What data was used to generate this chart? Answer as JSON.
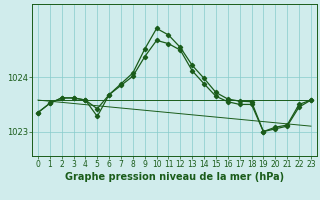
{
  "background_color": "#d0ecec",
  "grid_color": "#88cccc",
  "line_color": "#1a5c1a",
  "title": "Graphe pression niveau de la mer (hPa)",
  "xlim": [
    -0.5,
    23.5
  ],
  "ylim": [
    1022.55,
    1025.35
  ],
  "yticks": [
    1023,
    1024
  ],
  "xticks": [
    0,
    1,
    2,
    3,
    4,
    5,
    6,
    7,
    8,
    9,
    10,
    11,
    12,
    13,
    14,
    15,
    16,
    17,
    18,
    19,
    20,
    21,
    22,
    23
  ],
  "series1_x": [
    0,
    1,
    2,
    3,
    4,
    5,
    6,
    7,
    8,
    9,
    10,
    11,
    12,
    13,
    14,
    15,
    16,
    17,
    18,
    19,
    20,
    21,
    22,
    23
  ],
  "series1_y": [
    1023.35,
    1023.52,
    1023.62,
    1023.62,
    1023.58,
    1023.28,
    1023.68,
    1023.88,
    1024.08,
    1024.52,
    1024.9,
    1024.78,
    1024.55,
    1024.22,
    1023.98,
    1023.72,
    1023.6,
    1023.56,
    1023.55,
    1023.0,
    1023.08,
    1023.12,
    1023.5,
    1023.58
  ],
  "series2_x": [
    0,
    1,
    2,
    3,
    4,
    5,
    6,
    7,
    8,
    9,
    10,
    11,
    12,
    13,
    14,
    15,
    16,
    17,
    18,
    19,
    20,
    21,
    22,
    23
  ],
  "series2_y": [
    1023.35,
    1023.52,
    1023.62,
    1023.62,
    1023.58,
    1023.42,
    1023.68,
    1023.85,
    1024.02,
    1024.38,
    1024.68,
    1024.62,
    1024.5,
    1024.12,
    1023.88,
    1023.65,
    1023.55,
    1023.5,
    1023.5,
    1023.0,
    1023.05,
    1023.1,
    1023.45,
    1023.58
  ],
  "flat_line_x": [
    0,
    23
  ],
  "flat_line_y": [
    1023.58,
    1023.58
  ],
  "diag_line_x": [
    0,
    23
  ],
  "diag_line_y": [
    1023.58,
    1023.1
  ],
  "tick_fontsize": 5.5,
  "title_fontsize": 7,
  "line_width": 0.9,
  "marker_size": 2.2
}
